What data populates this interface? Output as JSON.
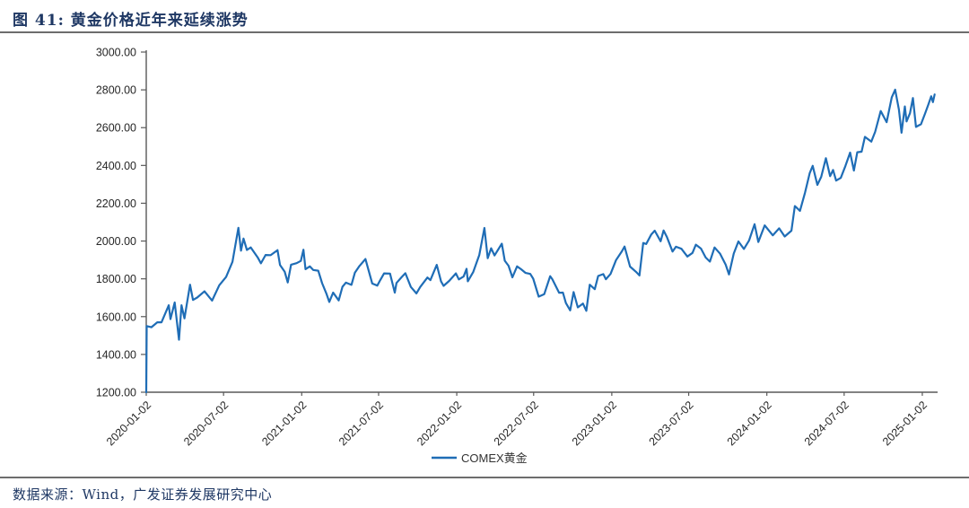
{
  "header": {
    "title": "图 41:  黄金价格近年来延续涨势"
  },
  "footer": {
    "source": "数据来源：Wind，广发证券发展研究中心"
  },
  "colors": {
    "title_navy": "#1f3864",
    "line_blue": "#1f6db6",
    "axis_gray": "#595959",
    "tick_label": "#262626"
  },
  "chart_data": {
    "type": "line",
    "title": "黄金价格近年来延续涨势",
    "xlabel": "",
    "ylabel": "",
    "grid": false,
    "legend_position": "bottom-center",
    "ylim": [
      1200,
      3000
    ],
    "y_ticks": [
      1200,
      1400,
      1600,
      1800,
      2000,
      2200,
      2400,
      2600,
      2800,
      3000
    ],
    "y_tick_decimals": 2,
    "x_range": [
      "2020-01-02",
      "2025-02-07"
    ],
    "x_ticks": [
      "2020-01-02",
      "2020-07-02",
      "2021-01-02",
      "2021-07-02",
      "2022-01-02",
      "2022-07-02",
      "2023-01-02",
      "2023-07-02",
      "2024-01-02",
      "2024-07-02",
      "2025-01-02"
    ],
    "axis_color": "#595959",
    "label_color": "#262626",
    "series": [
      {
        "name": "COMEX黄金",
        "color": "#1f6db6",
        "points": [
          [
            "2020-01-02",
            1200
          ],
          [
            "2020-01-03",
            1550
          ],
          [
            "2020-01-14",
            1544
          ],
          [
            "2020-01-28",
            1570
          ],
          [
            "2020-02-07",
            1570
          ],
          [
            "2020-02-24",
            1660
          ],
          [
            "2020-02-28",
            1587
          ],
          [
            "2020-03-09",
            1675
          ],
          [
            "2020-03-19",
            1478
          ],
          [
            "2020-03-25",
            1660
          ],
          [
            "2020-04-01",
            1591
          ],
          [
            "2020-04-14",
            1769
          ],
          [
            "2020-04-21",
            1688
          ],
          [
            "2020-05-01",
            1701
          ],
          [
            "2020-05-18",
            1734
          ],
          [
            "2020-06-05",
            1685
          ],
          [
            "2020-06-22",
            1766
          ],
          [
            "2020-07-08",
            1810
          ],
          [
            "2020-07-23",
            1890
          ],
          [
            "2020-08-06",
            2070
          ],
          [
            "2020-08-12",
            1949
          ],
          [
            "2020-08-18",
            2013
          ],
          [
            "2020-08-26",
            1953
          ],
          [
            "2020-09-04",
            1966
          ],
          [
            "2020-09-21",
            1911
          ],
          [
            "2020-09-28",
            1882
          ],
          [
            "2020-10-09",
            1926
          ],
          [
            "2020-10-21",
            1925
          ],
          [
            "2020-11-06",
            1952
          ],
          [
            "2020-11-12",
            1873
          ],
          [
            "2020-11-23",
            1838
          ],
          [
            "2020-11-30",
            1781
          ],
          [
            "2020-12-08",
            1875
          ],
          [
            "2020-12-21",
            1883
          ],
          [
            "2020-12-31",
            1895
          ],
          [
            "2021-01-06",
            1954
          ],
          [
            "2021-01-11",
            1851
          ],
          [
            "2021-01-21",
            1866
          ],
          [
            "2021-01-29",
            1847
          ],
          [
            "2021-02-10",
            1843
          ],
          [
            "2021-02-19",
            1777
          ],
          [
            "2021-03-01",
            1723
          ],
          [
            "2021-03-08",
            1678
          ],
          [
            "2021-03-17",
            1727
          ],
          [
            "2021-03-30",
            1686
          ],
          [
            "2021-04-08",
            1758
          ],
          [
            "2021-04-16",
            1780
          ],
          [
            "2021-04-29",
            1768
          ],
          [
            "2021-05-07",
            1832
          ],
          [
            "2021-05-18",
            1868
          ],
          [
            "2021-06-01",
            1905
          ],
          [
            "2021-06-17",
            1775
          ],
          [
            "2021-06-29",
            1764
          ],
          [
            "2021-07-06",
            1794
          ],
          [
            "2021-07-15",
            1829
          ],
          [
            "2021-07-29",
            1828
          ],
          [
            "2021-08-09",
            1727
          ],
          [
            "2021-08-13",
            1778
          ],
          [
            "2021-08-24",
            1806
          ],
          [
            "2021-09-03",
            1830
          ],
          [
            "2021-09-16",
            1757
          ],
          [
            "2021-09-29",
            1723
          ],
          [
            "2021-10-08",
            1757
          ],
          [
            "2021-10-25",
            1807
          ],
          [
            "2021-11-01",
            1793
          ],
          [
            "2021-11-16",
            1874
          ],
          [
            "2021-11-26",
            1786
          ],
          [
            "2021-12-02",
            1763
          ],
          [
            "2021-12-15",
            1789
          ],
          [
            "2021-12-31",
            1829
          ],
          [
            "2022-01-07",
            1797
          ],
          [
            "2022-01-18",
            1812
          ],
          [
            "2022-01-25",
            1853
          ],
          [
            "2022-01-28",
            1787
          ],
          [
            "2022-02-10",
            1837
          ],
          [
            "2022-02-24",
            1926
          ],
          [
            "2022-03-08",
            2069
          ],
          [
            "2022-03-16",
            1909
          ],
          [
            "2022-03-24",
            1962
          ],
          [
            "2022-04-01",
            1924
          ],
          [
            "2022-04-18",
            1986
          ],
          [
            "2022-04-25",
            1896
          ],
          [
            "2022-05-04",
            1869
          ],
          [
            "2022-05-13",
            1808
          ],
          [
            "2022-05-24",
            1866
          ],
          [
            "2022-06-03",
            1850
          ],
          [
            "2022-06-13",
            1831
          ],
          [
            "2022-06-24",
            1826
          ],
          [
            "2022-07-01",
            1801
          ],
          [
            "2022-07-14",
            1706
          ],
          [
            "2022-07-27",
            1719
          ],
          [
            "2022-08-10",
            1814
          ],
          [
            "2022-08-15",
            1798
          ],
          [
            "2022-08-31",
            1726
          ],
          [
            "2022-09-09",
            1727
          ],
          [
            "2022-09-16",
            1672
          ],
          [
            "2022-09-26",
            1633
          ],
          [
            "2022-10-04",
            1730
          ],
          [
            "2022-10-14",
            1649
          ],
          [
            "2022-10-26",
            1669
          ],
          [
            "2022-11-03",
            1631
          ],
          [
            "2022-11-11",
            1769
          ],
          [
            "2022-11-23",
            1745
          ],
          [
            "2022-12-01",
            1815
          ],
          [
            "2022-12-13",
            1825
          ],
          [
            "2022-12-19",
            1798
          ],
          [
            "2022-12-30",
            1826
          ],
          [
            "2023-01-12",
            1899
          ],
          [
            "2023-01-26",
            1946
          ],
          [
            "2023-02-01",
            1971
          ],
          [
            "2023-02-14",
            1865
          ],
          [
            "2023-02-28",
            1837
          ],
          [
            "2023-03-08",
            1818
          ],
          [
            "2023-03-17",
            1990
          ],
          [
            "2023-03-24",
            1984
          ],
          [
            "2023-04-05",
            2035
          ],
          [
            "2023-04-13",
            2055
          ],
          [
            "2023-04-27",
            1999
          ],
          [
            "2023-05-04",
            2056
          ],
          [
            "2023-05-12",
            2020
          ],
          [
            "2023-05-25",
            1944
          ],
          [
            "2023-06-02",
            1970
          ],
          [
            "2023-06-15",
            1959
          ],
          [
            "2023-06-29",
            1918
          ],
          [
            "2023-07-11",
            1937
          ],
          [
            "2023-07-19",
            1981
          ],
          [
            "2023-07-31",
            1960
          ],
          [
            "2023-08-11",
            1913
          ],
          [
            "2023-08-21",
            1891
          ],
          [
            "2023-09-01",
            1966
          ],
          [
            "2023-09-14",
            1933
          ],
          [
            "2023-09-27",
            1875
          ],
          [
            "2023-10-05",
            1823
          ],
          [
            "2023-10-16",
            1934
          ],
          [
            "2023-10-27",
            1998
          ],
          [
            "2023-11-09",
            1958
          ],
          [
            "2023-11-21",
            2002
          ],
          [
            "2023-12-04",
            2089
          ],
          [
            "2023-12-13",
            1995
          ],
          [
            "2023-12-28",
            2083
          ],
          [
            "2024-01-16",
            2030
          ],
          [
            "2024-01-31",
            2067
          ],
          [
            "2024-02-13",
            2024
          ],
          [
            "2024-02-29",
            2055
          ],
          [
            "2024-03-08",
            2185
          ],
          [
            "2024-03-20",
            2160
          ],
          [
            "2024-04-01",
            2257
          ],
          [
            "2024-04-12",
            2360
          ],
          [
            "2024-04-19",
            2398
          ],
          [
            "2024-04-30",
            2297
          ],
          [
            "2024-05-09",
            2340
          ],
          [
            "2024-05-20",
            2438
          ],
          [
            "2024-05-30",
            2343
          ],
          [
            "2024-06-06",
            2376
          ],
          [
            "2024-06-13",
            2320
          ],
          [
            "2024-06-24",
            2334
          ],
          [
            "2024-07-05",
            2398
          ],
          [
            "2024-07-16",
            2468
          ],
          [
            "2024-07-25",
            2373
          ],
          [
            "2024-08-02",
            2470
          ],
          [
            "2024-08-12",
            2473
          ],
          [
            "2024-08-20",
            2551
          ],
          [
            "2024-09-04",
            2526
          ],
          [
            "2024-09-13",
            2578
          ],
          [
            "2024-09-26",
            2688
          ],
          [
            "2024-10-10",
            2629
          ],
          [
            "2024-10-22",
            2760
          ],
          [
            "2024-10-30",
            2801
          ],
          [
            "2024-11-08",
            2695
          ],
          [
            "2024-11-14",
            2573
          ],
          [
            "2024-11-22",
            2712
          ],
          [
            "2024-11-26",
            2633
          ],
          [
            "2024-12-04",
            2676
          ],
          [
            "2024-12-11",
            2757
          ],
          [
            "2024-12-18",
            2604
          ],
          [
            "2024-12-30",
            2618
          ],
          [
            "2025-01-08",
            2672
          ],
          [
            "2025-01-16",
            2721
          ],
          [
            "2025-01-23",
            2766
          ],
          [
            "2025-01-27",
            2735
          ],
          [
            "2025-01-31",
            2776
          ]
        ]
      }
    ]
  }
}
